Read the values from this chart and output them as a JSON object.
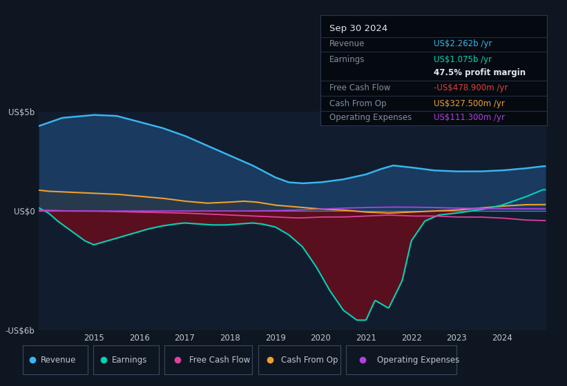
{
  "bg_color": "#0e1621",
  "plot_bg_color": "#111d2e",
  "grid_color": "#1e2d45",
  "zero_line_color": "#6a7a8a",
  "ylim": [
    -6000000000.0,
    5000000000.0
  ],
  "ytick_labels": [
    "-US$6b",
    "US$0",
    "US$5b"
  ],
  "xlabel_years": [
    2015,
    2016,
    2017,
    2018,
    2019,
    2020,
    2021,
    2022,
    2023,
    2024
  ],
  "colors": {
    "revenue": "#38b6f0",
    "earnings": "#00d4b8",
    "free_cash_flow": "#e040a0",
    "cash_from_op": "#f0a030",
    "operating_expenses": "#b040e0"
  },
  "fill_revenue_color": "#1a3a60",
  "fill_earnings_neg_color": "#5a0f1e",
  "fill_cashop_color": "#2a3540",
  "tooltip": {
    "date": "Sep 30 2024",
    "revenue_label": "Revenue",
    "revenue_value": "US$2.262b /yr",
    "revenue_color": "#38b6f0",
    "earnings_label": "Earnings",
    "earnings_value": "US$1.075b /yr",
    "earnings_color": "#00d4b8",
    "margin_value": "47.5% profit margin",
    "fcf_label": "Free Cash Flow",
    "fcf_value": "-US$478.900m /yr",
    "fcf_color": "#e04040",
    "cashop_label": "Cash From Op",
    "cashop_value": "US$327.500m /yr",
    "cashop_color": "#f0a030",
    "opex_label": "Operating Expenses",
    "opex_value": "US$111.300m /yr",
    "opex_color": "#b040e0"
  },
  "legend": [
    {
      "label": "Revenue",
      "color": "#38b6f0"
    },
    {
      "label": "Earnings",
      "color": "#00d4b8"
    },
    {
      "label": "Free Cash Flow",
      "color": "#e040a0"
    },
    {
      "label": "Cash From Op",
      "color": "#f0a030"
    },
    {
      "label": "Operating Expenses",
      "color": "#b040e0"
    }
  ]
}
